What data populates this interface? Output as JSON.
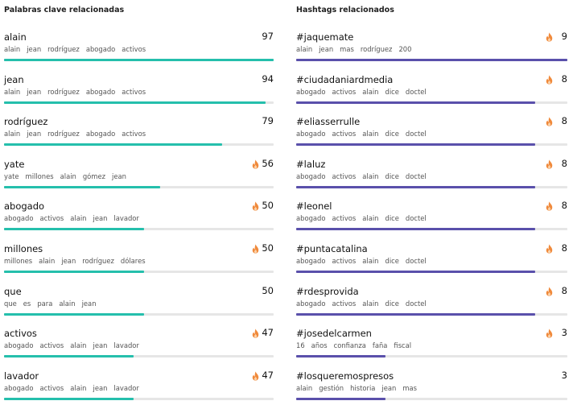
{
  "colors": {
    "keywords_bar": "#25bfac",
    "hashtags_bar": "#5a50ab",
    "trending_icon": "#f08a3c"
  },
  "keywords": {
    "title": "Palabras clave relacionadas",
    "items": [
      {
        "term": "alain",
        "count": "97",
        "trending": false,
        "level": 1.0,
        "related": [
          "alain",
          "jean",
          "rodríguez",
          "abogado",
          "activos"
        ]
      },
      {
        "term": "jean",
        "count": "94",
        "trending": false,
        "level": 0.97,
        "related": [
          "alain",
          "jean",
          "rodríguez",
          "abogado",
          "activos"
        ]
      },
      {
        "term": "rodríguez",
        "count": "79",
        "trending": false,
        "level": 0.81,
        "related": [
          "alain",
          "jean",
          "rodríguez",
          "abogado",
          "activos"
        ]
      },
      {
        "term": "yate",
        "count": "56",
        "trending": true,
        "level": 0.58,
        "related": [
          "yate",
          "millones",
          "alain",
          "gómez",
          "jean"
        ]
      },
      {
        "term": "abogado",
        "count": "50",
        "trending": true,
        "level": 0.52,
        "related": [
          "abogado",
          "activos",
          "alain",
          "jean",
          "lavador"
        ]
      },
      {
        "term": "millones",
        "count": "50",
        "trending": true,
        "level": 0.52,
        "related": [
          "millones",
          "alain",
          "jean",
          "rodríguez",
          "dólares"
        ]
      },
      {
        "term": "que",
        "count": "50",
        "trending": false,
        "level": 0.52,
        "related": [
          "que",
          "es",
          "para",
          "alain",
          "jean"
        ]
      },
      {
        "term": "activos",
        "count": "47",
        "trending": true,
        "level": 0.48,
        "related": [
          "abogado",
          "activos",
          "alain",
          "jean",
          "lavador"
        ]
      },
      {
        "term": "lavador",
        "count": "47",
        "trending": true,
        "level": 0.48,
        "related": [
          "abogado",
          "activos",
          "alain",
          "jean",
          "lavador"
        ]
      }
    ]
  },
  "hashtags": {
    "title": "Hashtags relacionados",
    "items": [
      {
        "term": "#jaquemate",
        "count": "9",
        "trending": true,
        "level": 1.0,
        "related": [
          "alain",
          "jean",
          "mas",
          "rodríguez",
          "200"
        ]
      },
      {
        "term": "#ciudadaniardmedia",
        "count": "8",
        "trending": true,
        "level": 0.88,
        "related": [
          "abogado",
          "activos",
          "alain",
          "dice",
          "doctel"
        ]
      },
      {
        "term": "#eliasserrulle",
        "count": "8",
        "trending": true,
        "level": 0.88,
        "related": [
          "abogado",
          "activos",
          "alain",
          "dice",
          "doctel"
        ]
      },
      {
        "term": "#laluz",
        "count": "8",
        "trending": true,
        "level": 0.88,
        "related": [
          "abogado",
          "activos",
          "alain",
          "dice",
          "doctel"
        ]
      },
      {
        "term": "#leonel",
        "count": "8",
        "trending": true,
        "level": 0.88,
        "related": [
          "abogado",
          "activos",
          "alain",
          "dice",
          "doctel"
        ]
      },
      {
        "term": "#puntacatalina",
        "count": "8",
        "trending": true,
        "level": 0.88,
        "related": [
          "abogado",
          "activos",
          "alain",
          "dice",
          "doctel"
        ]
      },
      {
        "term": "#rdesprovida",
        "count": "8",
        "trending": true,
        "level": 0.88,
        "related": [
          "abogado",
          "activos",
          "alain",
          "dice",
          "doctel"
        ]
      },
      {
        "term": "#josedelcarmen",
        "count": "3",
        "trending": true,
        "level": 0.33,
        "related": [
          "16",
          "años",
          "confianza",
          "faña",
          "fiscal"
        ]
      },
      {
        "term": "#losqueremospresos",
        "count": "3",
        "trending": false,
        "level": 0.33,
        "related": [
          "alain",
          "gestión",
          "historia",
          "jean",
          "mas"
        ]
      }
    ]
  }
}
